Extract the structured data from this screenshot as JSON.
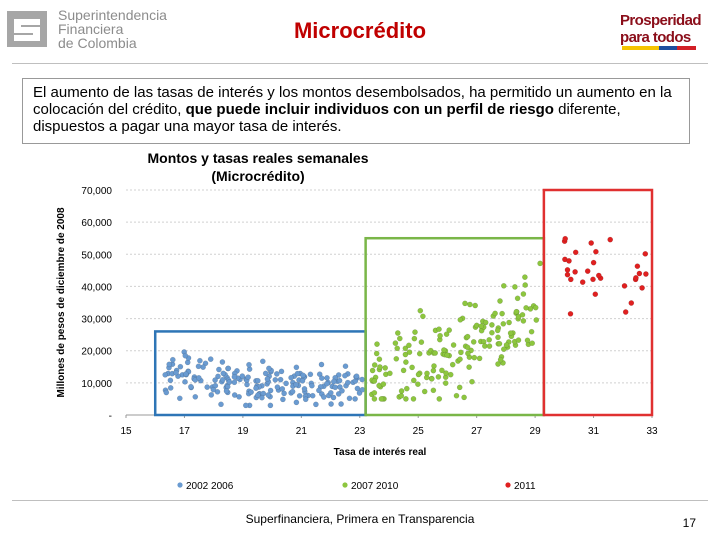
{
  "header": {
    "logo_left_lines": [
      "Superintendencia",
      "Financiera",
      "de Colombia"
    ],
    "title": "Microcrédito",
    "logo_right_lines": [
      "Prosperidad",
      "para todos"
    ]
  },
  "intro": {
    "text_plain": "El aumento de las tasas de interés y los montos desembolsados, ha permitido un aumento en la colocación del crédito, ",
    "text_bold": "que puede incluir individuos con un perfil de riesgo",
    "text_plain2": " diferente, dispuestos a pagar una mayor tasa de interés."
  },
  "chart_data": {
    "type": "scatter",
    "title": "Montos y tasas reales semanales",
    "subtitle": "(Microcrédito)",
    "xlabel": "Tasa de interés  real",
    "ylabel": "Millones de pesos de diciembre de 2008",
    "xlim": [
      15,
      33
    ],
    "ylim": [
      0,
      70000
    ],
    "xticks": [
      "15",
      "17",
      "19",
      "21",
      "23",
      "25",
      "27",
      "29",
      "31",
      "33"
    ],
    "yticks": [
      "-",
      "10,000",
      "20,000",
      "30,000",
      "40,000",
      "50,000",
      "60,000",
      "70,000"
    ],
    "grid": true,
    "legend_position": "bottom",
    "series": [
      {
        "name": "2002 2006",
        "color": "#6a9bd1",
        "box_color": "#2e75b6",
        "box": {
          "x": [
            16.0,
            23.2
          ],
          "y": [
            0,
            26000
          ]
        },
        "points": []
      },
      {
        "name": "2007 2010",
        "color": "#8dc63f",
        "box_color": "#7ab648",
        "box": {
          "x": [
            23.2,
            29.3
          ],
          "y": [
            0,
            55000
          ]
        },
        "points": []
      },
      {
        "name": "2011",
        "color": "#e02020",
        "box_color": "#e03030",
        "box": {
          "x": [
            29.3,
            33.0
          ],
          "y": [
            0,
            70000
          ]
        },
        "points": []
      }
    ]
  },
  "footer": {
    "text": "Superfinanciera, Primera en Transparencia",
    "page": "17"
  }
}
